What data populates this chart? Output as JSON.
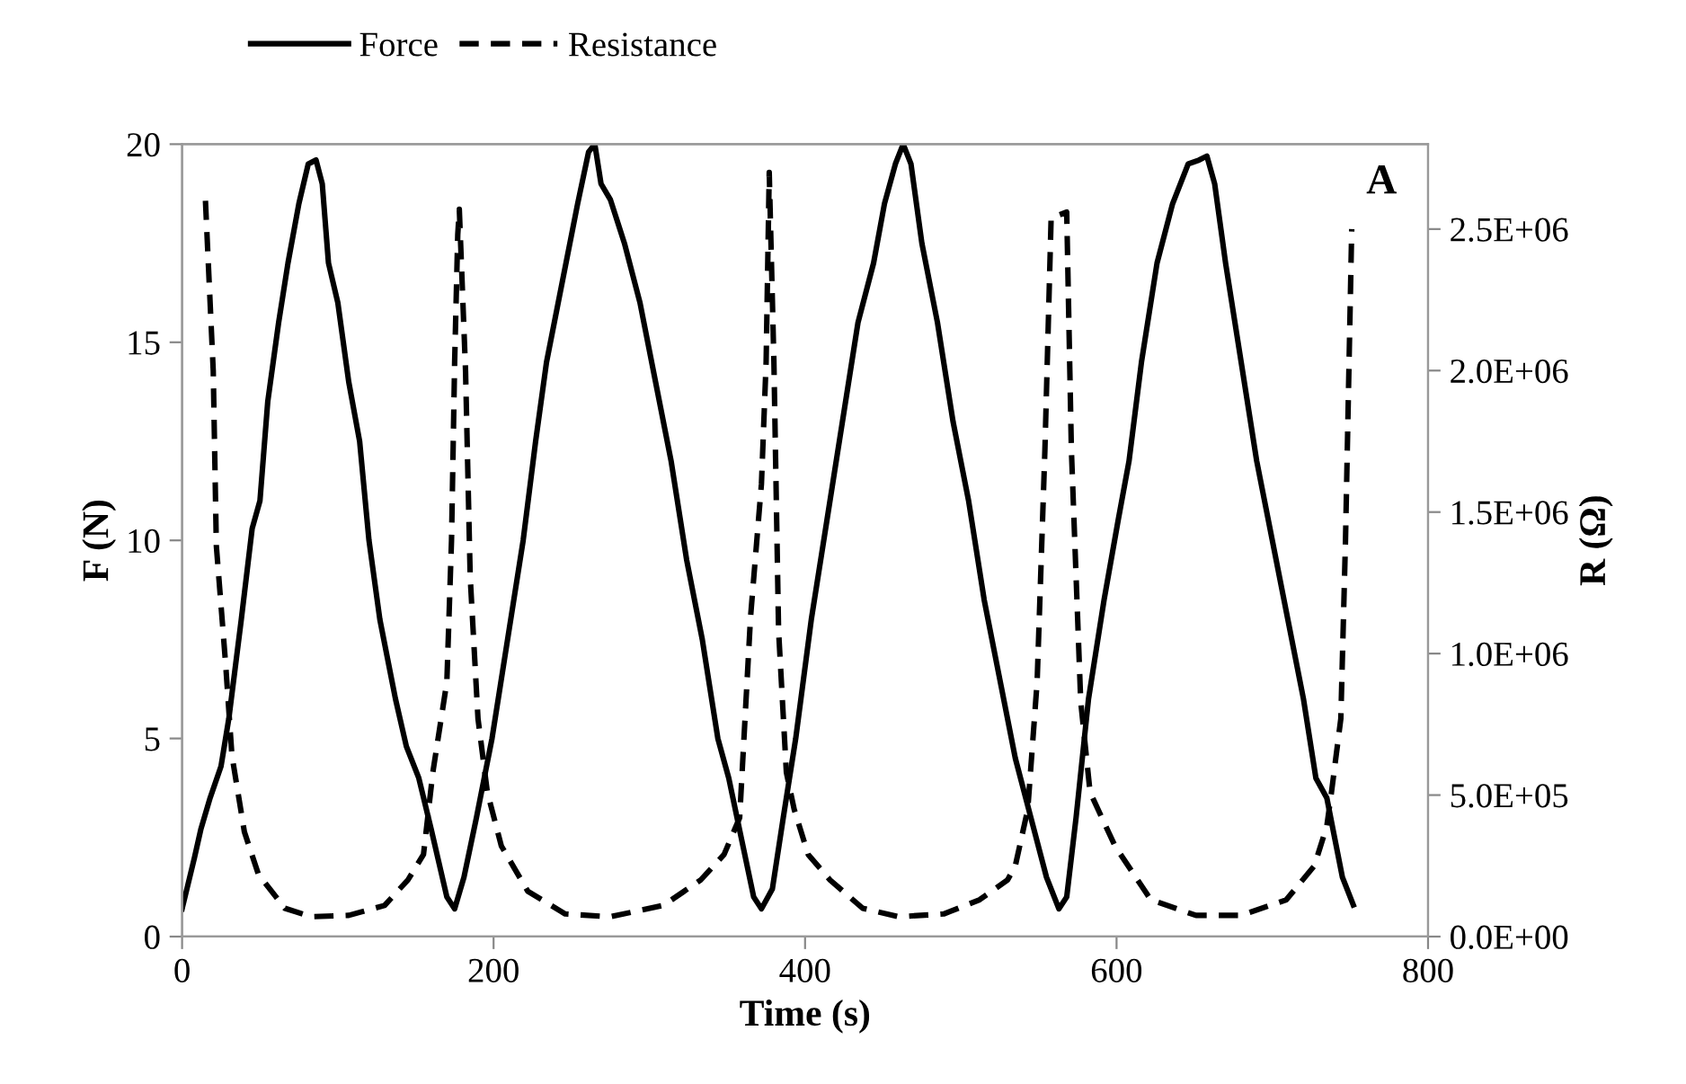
{
  "chart_data": {
    "type": "line",
    "xlabel": "Time (s)",
    "ylabel": "F (N)",
    "y2label": "R (Ω)",
    "annotations": [
      "A"
    ],
    "legend": "top left",
    "grid": false,
    "marker": "none",
    "xlim": [
      0,
      800
    ],
    "xticks": [
      0,
      200,
      400,
      600,
      800
    ],
    "ylim": [
      0,
      20
    ],
    "yticks": [
      0,
      5,
      10,
      15,
      20
    ],
    "y2lim": [
      0,
      2800000
    ],
    "y2ticks": [
      {
        "value": 0,
        "label": "0.0E+00"
      },
      {
        "value": 500000,
        "label": "5.0E+05"
      },
      {
        "value": 1000000,
        "label": "1.0E+06"
      },
      {
        "value": 1500000,
        "label": "1.5E+06"
      },
      {
        "value": 2000000,
        "label": "2.0E+06"
      },
      {
        "value": 2500000,
        "label": "2.5E+06"
      }
    ],
    "series": [
      {
        "name": "Force",
        "color": "#000000",
        "line_style": "solid",
        "x": [
          0,
          8,
          12,
          18,
          25,
          30,
          38,
          45,
          50,
          55,
          62,
          68,
          75,
          81,
          86,
          90,
          94,
          100,
          107,
          114,
          120,
          127,
          137,
          144,
          152,
          160,
          170,
          175,
          181,
          189,
          199,
          209,
          219,
          227,
          234,
          244,
          254,
          261,
          265,
          269,
          275,
          284,
          294,
          304,
          314,
          324,
          334,
          344,
          351,
          359,
          367,
          372,
          379,
          386,
          394,
          404,
          414,
          424,
          434,
          444,
          451,
          458,
          463,
          468,
          475,
          485,
          495,
          505,
          515,
          525,
          535,
          545,
          555,
          563,
          568,
          574,
          582,
          592,
          601,
          608,
          616,
          626,
          636,
          646,
          653,
          658,
          663,
          670,
          680,
          690,
          700,
          710,
          720,
          728,
          735,
          740,
          745,
          752
        ],
        "values": [
          0.7,
          2.0,
          2.7,
          3.5,
          4.3,
          5.5,
          8.0,
          10.3,
          11,
          13.5,
          15.5,
          17,
          18.5,
          19.5,
          19.6,
          19,
          17,
          16,
          14,
          12.5,
          10,
          8,
          6,
          4.8,
          4,
          2.7,
          1,
          0.7,
          1.5,
          3,
          5,
          7.5,
          10,
          12.5,
          14.5,
          16.5,
          18.5,
          19.8,
          20,
          19,
          18.6,
          17.5,
          16,
          14,
          12,
          9.5,
          7.5,
          5,
          4,
          2.5,
          1,
          0.7,
          1.2,
          3,
          5,
          8,
          10.5,
          13,
          15.5,
          17,
          18.5,
          19.5,
          20,
          19.5,
          17.5,
          15.5,
          13,
          11,
          8.5,
          6.5,
          4.5,
          3,
          1.5,
          0.7,
          1.0,
          3,
          6,
          8.5,
          10.5,
          12,
          14.5,
          17,
          18.5,
          19.5,
          19.6,
          19.7,
          19,
          17,
          14.5,
          12,
          10,
          8,
          6,
          4,
          3.5,
          2.5,
          1.5,
          0.8
        ]
      },
      {
        "name": "Resistance",
        "color": "#000000",
        "line_style": "dashed",
        "axis": "y2",
        "x": [
          15,
          20,
          22,
          28,
          32,
          40,
          49,
          66,
          83,
          107,
          130,
          145,
          155,
          161,
          170,
          173,
          175,
          177,
          178,
          182,
          185,
          190,
          196,
          205,
          222,
          246,
          275,
          309,
          333,
          348,
          358,
          365,
          372,
          375,
          377,
          380,
          383,
          388,
          393,
          402,
          416,
          437,
          460,
          489,
          512,
          530,
          535,
          543,
          549,
          554,
          558,
          568,
          571,
          577,
          583,
          599,
          622,
          651,
          680,
          709,
          727,
          735,
          738,
          744,
          747,
          751
        ],
        "values": [
          2600000,
          2000000,
          1380000,
          960000,
          640000,
          370000,
          220000,
          100000,
          70000,
          75000,
          110000,
          200000,
          290000,
          580000,
          900000,
          1400000,
          2030000,
          2480000,
          2570000,
          2000000,
          1270000,
          770000,
          510000,
          320000,
          160000,
          80000,
          70000,
          110000,
          200000,
          290000,
          420000,
          1130000,
          1600000,
          2030000,
          2700000,
          2030000,
          1080000,
          580000,
          450000,
          290000,
          200000,
          100000,
          70000,
          80000,
          130000,
          200000,
          250000,
          450000,
          900000,
          1720000,
          2540000,
          2560000,
          1720000,
          830000,
          510000,
          320000,
          130000,
          75000,
          75000,
          130000,
          250000,
          390000,
          510000,
          770000,
          1400000,
          2500000
        ]
      }
    ]
  }
}
